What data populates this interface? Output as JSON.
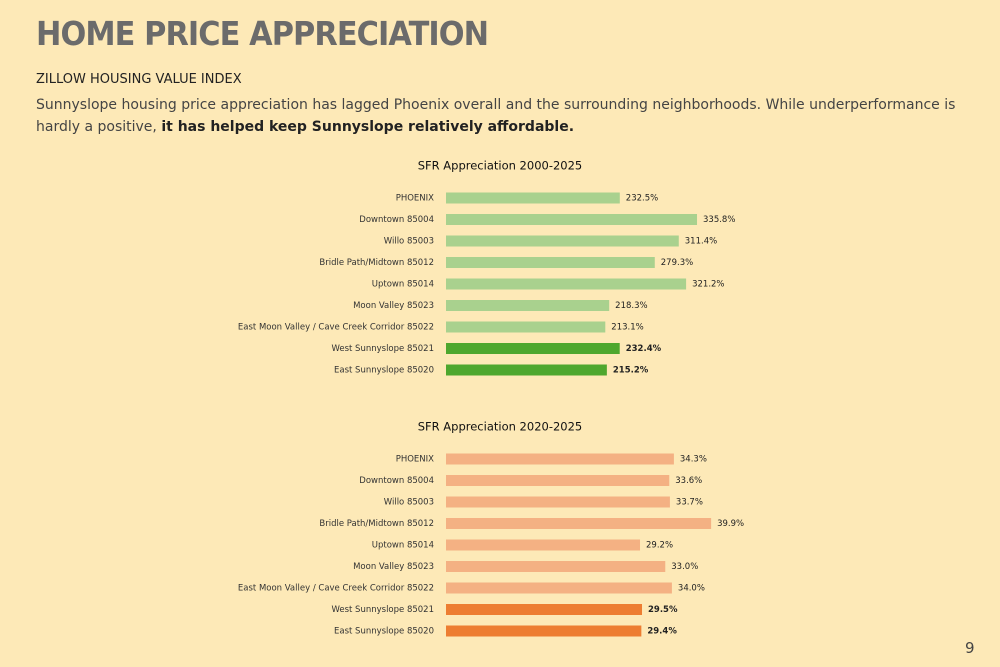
{
  "header": {
    "title": "HOME PRICE APPRECIATION",
    "subtitle": "ZILLOW HOUSING VALUE INDEX",
    "paragraph": {
      "text": "Sunnyslope housing price appreciation has lagged Phoenix overall and the surrounding neighborhoods. While underperformance is hardly a positive, ",
      "emphasis": "it has helped keep Sunnyslope relatively affordable."
    }
  },
  "page_number": "9",
  "chart_data": [
    {
      "type": "barh",
      "title": "SFR Appreciation 2000-2025",
      "categories": [
        "PHOENIX",
        "Downtown 85004",
        "Willo 85003",
        "Bridle Path/Midtown 85012",
        "Uptown 85014",
        "Moon Valley 85023",
        "East Moon Valley / Cave Creek Corridor 85022",
        "West Sunnyslope 85021",
        "East Sunnyslope 85020"
      ],
      "values": [
        232.5,
        335.8,
        311.4,
        279.3,
        321.2,
        218.3,
        213.1,
        232.4,
        215.2
      ],
      "value_labels": [
        "232.5%",
        "335.8%",
        "311.4%",
        "279.3%",
        "321.2%",
        "218.3%",
        "213.1%",
        "232.4%",
        "215.2%"
      ],
      "colors": [
        "#a9d18e",
        "#a9d18e",
        "#a9d18e",
        "#a9d18e",
        "#a9d18e",
        "#a9d18e",
        "#a9d18e",
        "#4ea72e",
        "#4ea72e"
      ],
      "xlim": [
        0,
        400
      ]
    },
    {
      "type": "barh",
      "title": "SFR Appreciation 2020-2025",
      "categories": [
        "PHOENIX",
        "Downtown 85004",
        "Willo 85003",
        "Bridle Path/Midtown 85012",
        "Uptown 85014",
        "Moon Valley 85023",
        "East Moon Valley / Cave Creek Corridor 85022",
        "West Sunnyslope 85021",
        "East Sunnyslope 85020"
      ],
      "values": [
        34.3,
        33.6,
        33.7,
        39.9,
        29.2,
        33.0,
        34.0,
        29.5,
        29.4
      ],
      "value_labels": [
        "34.3%",
        "33.6%",
        "33.7%",
        "39.9%",
        "29.2%",
        "33.0%",
        "34.0%",
        "29.5%",
        "29.4%"
      ],
      "colors": [
        "#f4b183",
        "#f4b183",
        "#f4b183",
        "#f4b183",
        "#f4b183",
        "#f4b183",
        "#f4b183",
        "#ed7d31",
        "#ed7d31"
      ],
      "xlim": [
        0,
        45
      ]
    }
  ]
}
